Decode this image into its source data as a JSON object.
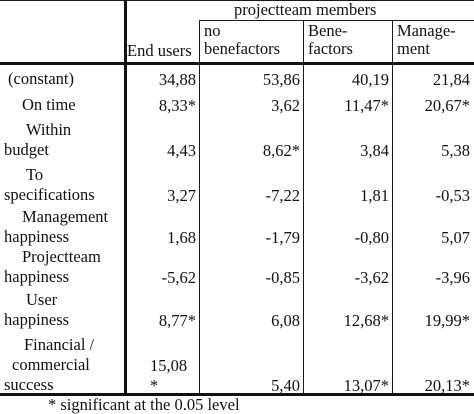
{
  "header": {
    "group_label": "projectteam members",
    "columns": [
      {
        "lines": [
          "End users"
        ]
      },
      {
        "lines": [
          "no",
          "benefactors"
        ]
      },
      {
        "lines": [
          "Bene-",
          "factors"
        ]
      },
      {
        "lines": [
          "Manage-",
          "ment"
        ]
      }
    ]
  },
  "rows": [
    {
      "label": [
        "(constant)"
      ],
      "values": [
        "34,88",
        "53,86",
        "40,19",
        "21,84"
      ]
    },
    {
      "label": [
        "On time"
      ],
      "values": [
        "8,33*",
        "3,62",
        "11,47*",
        "20,67*"
      ]
    },
    {
      "label": [
        "Within",
        "budget"
      ],
      "values": [
        "4,43",
        "8,62*",
        "3,84",
        "5,38"
      ]
    },
    {
      "label": [
        "To",
        "specifications"
      ],
      "values": [
        "3,27",
        "-7,22",
        "1,81",
        "-0,53"
      ]
    },
    {
      "label": [
        "Management",
        "happiness"
      ],
      "values": [
        "1,68",
        "-1,79",
        "-0,80",
        "5,07"
      ]
    },
    {
      "label": [
        "Projectteam",
        "happiness"
      ],
      "values": [
        "-5,62",
        "-0,85",
        "-3,62",
        "-3,96"
      ]
    },
    {
      "label": [
        "User",
        "happiness"
      ],
      "values": [
        "8,77*",
        "6,08",
        "12,68*",
        "19,99*"
      ]
    },
    {
      "label": [
        "Financial /",
        "commercial",
        "success"
      ],
      "values": [
        "15,08\n*",
        "5,40",
        "13,07*",
        "20,13*"
      ]
    }
  ],
  "footnote": "* significant at the 0.05 level"
}
